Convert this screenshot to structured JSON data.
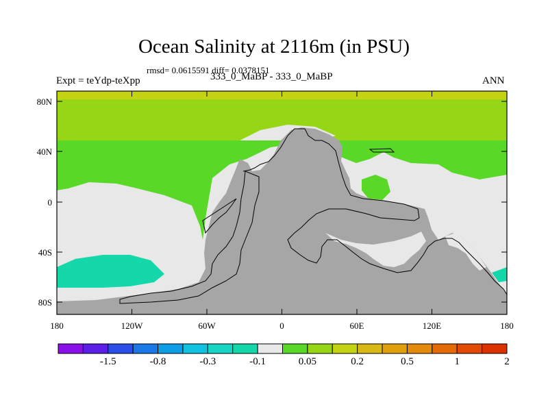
{
  "header": {
    "title": "Ocean Salinity at 2116m (in PSU)",
    "stats": "rmsd= 0.0615591 diff= 0.0378151",
    "experiment": "Expt = teYdp-teXpp",
    "comparison": "333_0_MaBP - 333_0_MaBP",
    "season": "ANN"
  },
  "chart_data": {
    "type": "heatmap",
    "title": "Ocean Salinity at 2116m (in PSU)",
    "units": "PSU",
    "projection": "cylindrical equidistant",
    "x_ticks": [
      "180",
      "120W",
      "60W",
      "0",
      "60E",
      "120E",
      "180"
    ],
    "y_ticks": [
      "80N",
      "40N",
      "0",
      "40S",
      "80S"
    ],
    "colorbar": {
      "colors": [
        "#8a10ea",
        "#5a1ee6",
        "#2a4ee6",
        "#1a78e6",
        "#0e9ee6",
        "#10c2e0",
        "#18d4c4",
        "#14d8aa",
        "#e8e8e8",
        "#5ad828",
        "#96d614",
        "#c4d414",
        "#d8b814",
        "#e0a00c",
        "#e48a0a",
        "#e46a08",
        "#e04a04",
        "#dc3200"
      ],
      "labels": [
        "-1.5",
        "-0.8",
        "-0.3",
        "-0.1",
        "0.05",
        "0.2",
        "0.5",
        "1",
        "2"
      ]
    },
    "land_color": "#a6a6a6"
  }
}
